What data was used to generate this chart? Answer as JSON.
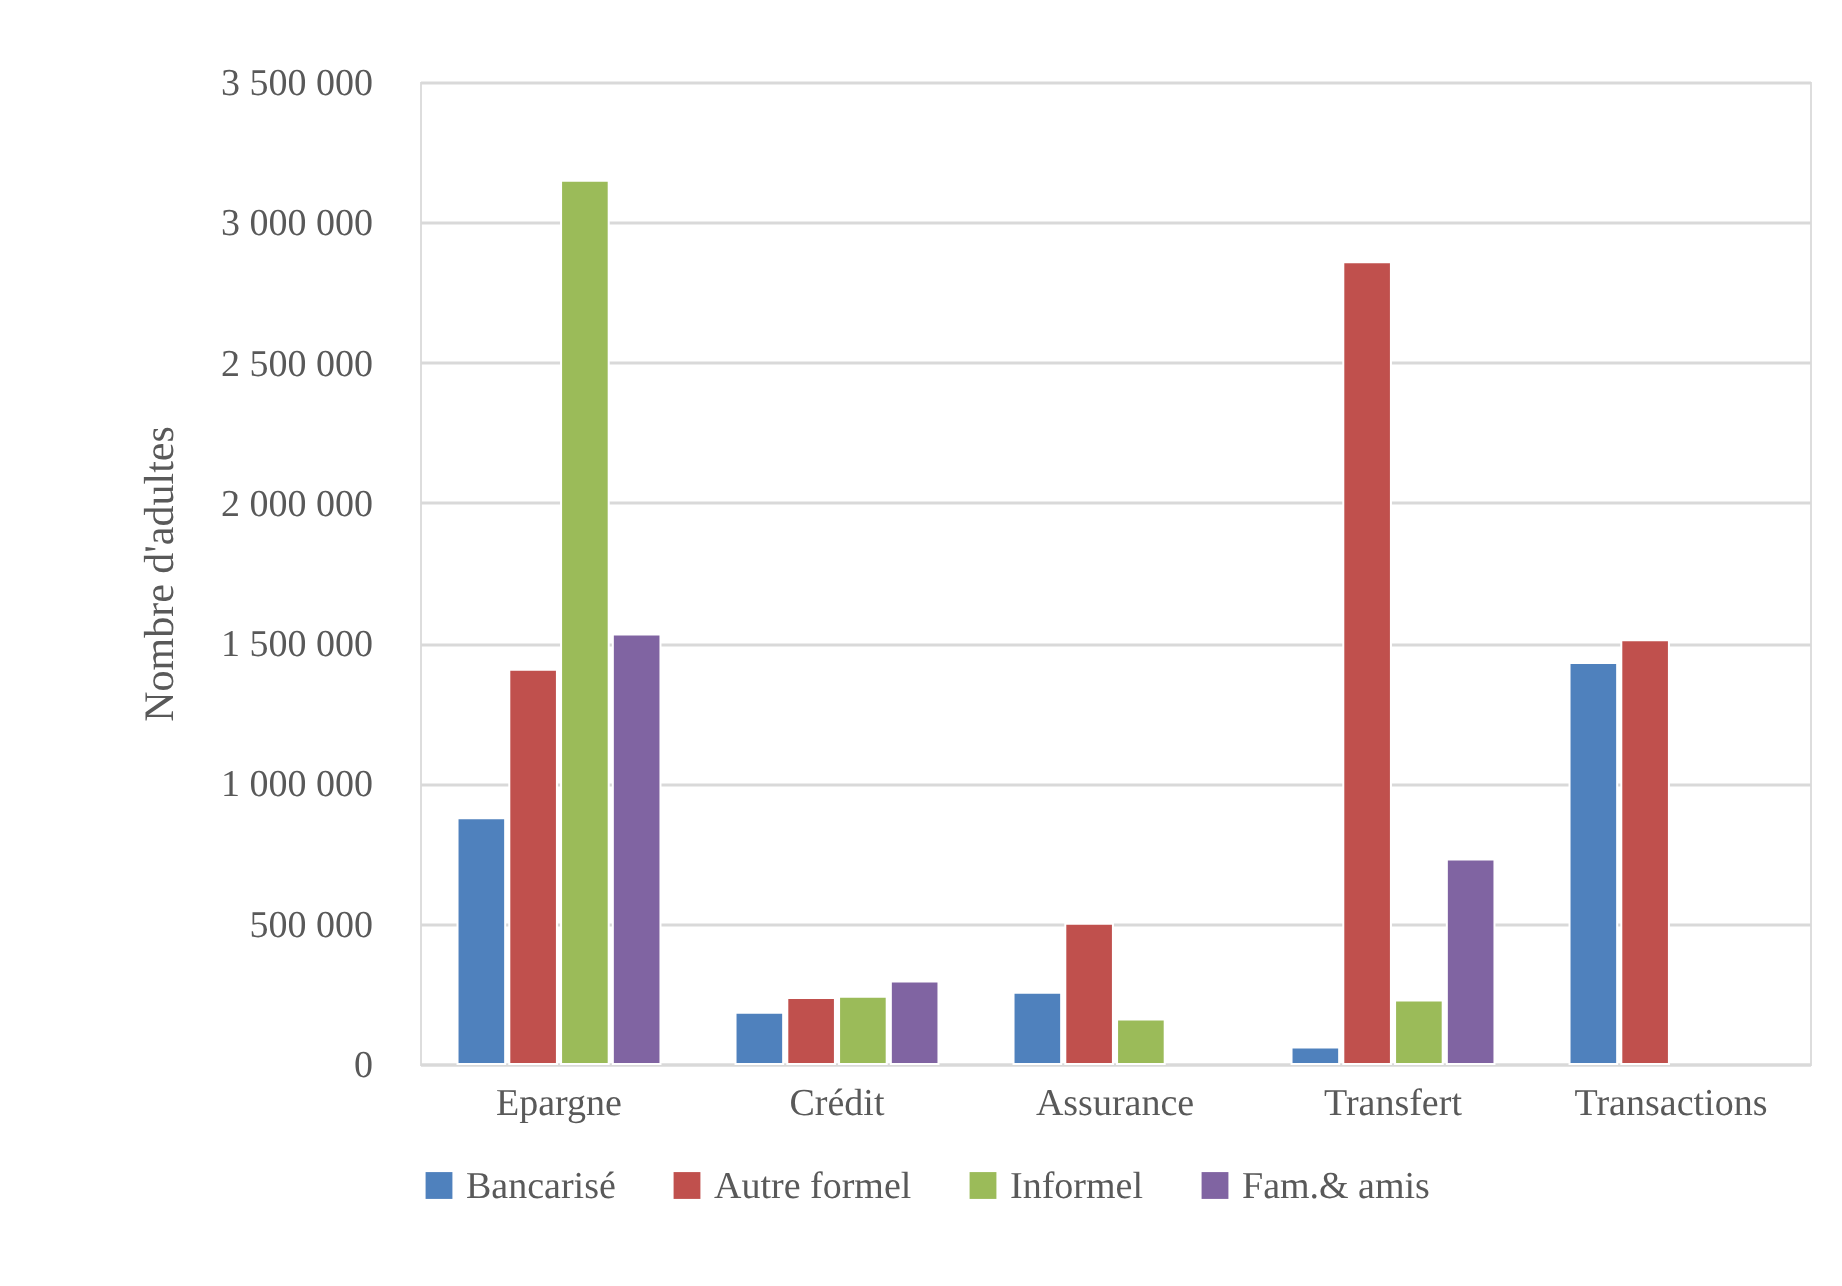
{
  "chart_data": {
    "type": "bar",
    "ylabel": "Nombre d'adultes",
    "categories": [
      "Epargne",
      "Crédit",
      "Assurance",
      "Transfert",
      "Transactions"
    ],
    "series": [
      {
        "name": "Bancarisé",
        "color": "#4f81bd",
        "values": [
          876000,
          183000,
          254000,
          59000,
          1429000
        ]
      },
      {
        "name": "Autre formel",
        "color": "#c0504d",
        "values": [
          1405000,
          235000,
          500000,
          2858000,
          1510000
        ]
      },
      {
        "name": "Informel",
        "color": "#9bbb59",
        "values": [
          3148000,
          240000,
          159000,
          226000,
          null
        ]
      },
      {
        "name": "Fam.& amis",
        "color": "#8064a2",
        "values": [
          1531000,
          294000,
          null,
          729000,
          null
        ]
      }
    ],
    "ylim": [
      0,
      3500000
    ],
    "yticks": [
      {
        "value": 0,
        "label": "0"
      },
      {
        "value": 500000,
        "label": "500 000"
      },
      {
        "value": 1000000,
        "label": "1 000 000"
      },
      {
        "value": 1500000,
        "label": "1 500 000"
      },
      {
        "value": 2000000,
        "label": "2 000 000"
      },
      {
        "value": 2500000,
        "label": "2 500 000"
      },
      {
        "value": 3000000,
        "label": "3 000 000"
      },
      {
        "value": 3500000,
        "label": "3 500 000"
      }
    ],
    "grid": "y",
    "legend": "bottom"
  }
}
